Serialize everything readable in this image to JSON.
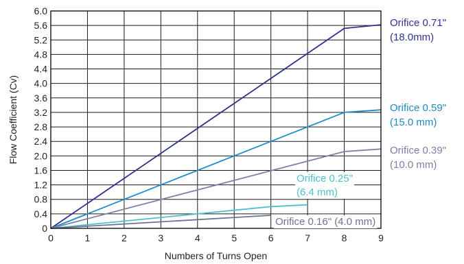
{
  "chart_data": {
    "type": "line",
    "xlabel": "Numbers of Turns Open",
    "ylabel": "Flow Coefficient (Cv)",
    "xlim": [
      0,
      9
    ],
    "ylim": [
      0,
      6
    ],
    "xticks": [
      0,
      1,
      2,
      3,
      4,
      5,
      6,
      7,
      8,
      9
    ],
    "yticks": [
      0,
      0.4,
      0.8,
      1.2,
      1.6,
      2.0,
      2.4,
      2.8,
      3.2,
      3.6,
      4.0,
      4.4,
      4.8,
      5.2,
      5.6,
      6.0
    ],
    "ytick_labels": [
      "0",
      "0.4",
      "0.8",
      "1.2",
      "1.6",
      "2.0",
      "2.4",
      "2.8",
      "3.2",
      "3.6",
      "4.0",
      "4.4",
      "4.8",
      "5.2",
      "5.6",
      "6.0"
    ],
    "grid": true,
    "series": [
      {
        "name_lines": [
          "Orifice 0.71\"",
          "(18.0mm)"
        ],
        "color": "#2e3192",
        "x": [
          0,
          8,
          9
        ],
        "y": [
          0,
          5.52,
          5.62
        ]
      },
      {
        "name_lines": [
          "Orifice 0.59\"",
          "(15.0 mm)"
        ],
        "color": "#1a8cc8",
        "x": [
          0,
          8,
          9
        ],
        "y": [
          0,
          3.2,
          3.27
        ]
      },
      {
        "name_lines": [
          "Orifice 0.39\"",
          "(10.0 mm)"
        ],
        "color": "#7d7fa8",
        "x": [
          0,
          8,
          9
        ],
        "y": [
          0,
          2.12,
          2.19
        ]
      },
      {
        "name_lines": [
          "Orifice 0.25\"",
          "(6.4 mm)"
        ],
        "color": "#4ec0cc",
        "x": [
          0,
          6,
          7
        ],
        "y": [
          0,
          0.6,
          0.65
        ]
      },
      {
        "name_lines": [
          "Orifice 0.16\"  (4.0 mm)"
        ],
        "color": "#6e7394",
        "x": [
          0,
          6
        ],
        "y": [
          0,
          0.36
        ]
      }
    ]
  }
}
